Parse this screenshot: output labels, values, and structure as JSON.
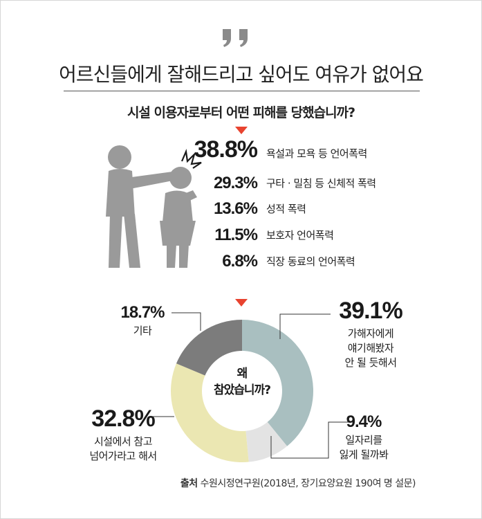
{
  "headline": "어르신들에게 잘해드리고 싶어도 여유가 없어요",
  "question_harm": "시설 이용자로부터 어떤 피해를 당했습니까?",
  "question_why": [
    "왜",
    "참았습니까?"
  ],
  "source_label": "출처",
  "source_text": "수원시정연구원(2018년, 장기요양요원 190여 명 설문)",
  "colors": {
    "accent": "#e8432f",
    "figure_gray": "#9a9a9a",
    "slice_blue": "#a9bfc0",
    "slice_lightgray": "#e3e3e3",
    "slice_yellow": "#ebe7b2",
    "slice_darkgray": "#7c7c7c"
  },
  "icons": [
    "quote-icon",
    "assault-figure-icon"
  ],
  "chart_data": [
    {
      "type": "table",
      "title": "시설 이용자로부터 어떤 피해를 당했습니까?",
      "unit": "%",
      "rows": [
        {
          "value": "38.8%",
          "label": "욕설과 모욕 등 언어폭력"
        },
        {
          "value": "29.3%",
          "label": "구타 · 밀침 등 신체적 폭력"
        },
        {
          "value": "13.6%",
          "label": "성적 폭력"
        },
        {
          "value": "11.5%",
          "label": "보호자 언어폭력"
        },
        {
          "value": "6.8%",
          "label": "직장 동료의 언어폭력"
        }
      ]
    },
    {
      "type": "pie",
      "title": "왜 참았습니까?",
      "slices": [
        {
          "label": [
            "가해자에게",
            "얘기해봤자",
            "안 될 듯해서"
          ],
          "value": 39.1,
          "display": "39.1%",
          "color": "#a9bfc0"
        },
        {
          "label": [
            "일자리를",
            "잃게 될까봐"
          ],
          "value": 9.4,
          "display": "9.4%",
          "color": "#e3e3e3"
        },
        {
          "label": [
            "시설에서 참고",
            "넘어가라고 해서"
          ],
          "value": 32.8,
          "display": "32.8%",
          "color": "#ebe7b2"
        },
        {
          "label": [
            "기타"
          ],
          "value": 18.7,
          "display": "18.7%",
          "color": "#7c7c7c"
        }
      ]
    }
  ]
}
